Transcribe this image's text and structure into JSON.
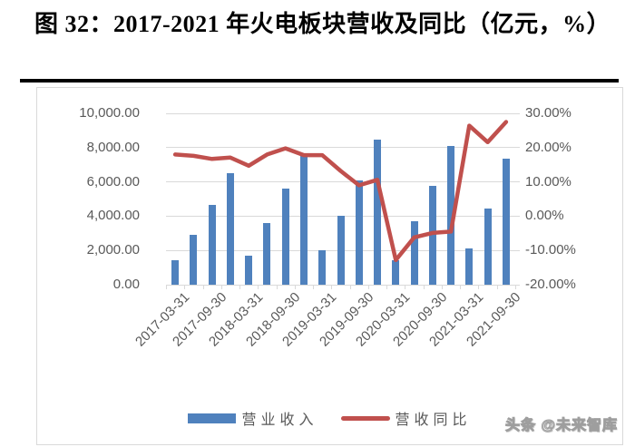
{
  "figure": {
    "title": "图 32：2017-2021 年火电板块营收及同比（亿元，%）",
    "watermark": "头条 @未来智库"
  },
  "chart_data": {
    "type": "combo",
    "categories": [
      "2017-03-31",
      "2017-06-30",
      "2017-09-30",
      "2017-12-31",
      "2018-03-31",
      "2018-06-30",
      "2018-09-30",
      "2018-12-31",
      "2019-03-31",
      "2019-06-30",
      "2019-09-30",
      "2019-12-31",
      "2020-03-31",
      "2020-06-30",
      "2020-09-30",
      "2020-12-31",
      "2021-03-31",
      "2021-06-30",
      "2021-09-30"
    ],
    "x_label_every": 2,
    "series": [
      {
        "name": "营业收入",
        "type": "bar",
        "axis": "left",
        "color": "#4F81BD",
        "values": [
          1450,
          2920,
          4660,
          6510,
          1680,
          3580,
          5630,
          7500,
          2000,
          4020,
          6060,
          8450,
          1450,
          3700,
          5760,
          8100,
          2120,
          4440,
          7340
        ]
      },
      {
        "name": "营收同比",
        "type": "line",
        "axis": "right",
        "color": "#C0504D",
        "values": [
          18.0,
          17.6,
          16.7,
          17.1,
          14.7,
          18.0,
          19.8,
          17.8,
          17.8,
          13.2,
          9.0,
          10.6,
          -12.8,
          -6.2,
          -4.9,
          -4.5,
          26.4,
          21.6,
          27.5
        ]
      }
    ],
    "left_axis": {
      "min": 0,
      "max": 10000,
      "step": 2000,
      "tick_labels": [
        "10,000.00",
        "8,000.00",
        "6,000.00",
        "4,000.00",
        "2,000.00",
        "0.00"
      ]
    },
    "right_axis": {
      "min": -20,
      "max": 30,
      "step": 10,
      "tick_labels": [
        "30.00%",
        "20.00%",
        "10.00%",
        "0.00%",
        "-10.00%",
        "-20.00%"
      ]
    },
    "grid": true,
    "legend_position": "bottom"
  },
  "colors": {
    "bar_blue": "#4F81BD",
    "line_red": "#C0504D",
    "axis_text": "#595959",
    "gridline": "#d9d9d9"
  }
}
